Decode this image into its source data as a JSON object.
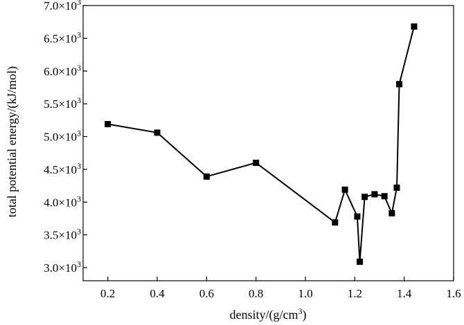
{
  "chart_data": {
    "type": "line",
    "xlabel": "density/(g/cm",
    "xlabel_sup": "3",
    "xlabel_suffix": ")",
    "ylabel": "total potential energy/(kJ/mol)",
    "xlim": [
      0.1,
      1.6
    ],
    "ylim": [
      2.8,
      7.0
    ],
    "x_ticks": [
      0.2,
      0.4,
      0.6,
      0.8,
      1.0,
      1.2,
      1.4,
      1.6
    ],
    "x_tick_labels": [
      "0.2",
      "0.4",
      "0.6",
      "0.8",
      "1.0",
      "1.2",
      "1.4",
      "1.6"
    ],
    "y_ticks": [
      3.0,
      3.5,
      4.0,
      4.5,
      5.0,
      5.5,
      6.0,
      6.5,
      7.0
    ],
    "y_tick_labels": [
      "3.0×10",
      "3.5×10",
      "4.0×10",
      "4.5×10",
      "5.0×10",
      "5.5×10",
      "6.0×10",
      "6.5×10",
      "7.0×10"
    ],
    "y_tick_exponent": "3",
    "grid": false,
    "line_color": "#000000",
    "marker": "square",
    "series": [
      {
        "x": [
          0.2,
          0.4,
          0.6,
          0.8,
          1.12,
          1.16,
          1.21,
          1.22,
          1.24,
          1.28,
          1.32,
          1.35,
          1.37,
          1.38,
          1.44
        ],
        "y": [
          5.19,
          5.06,
          4.39,
          4.6,
          3.69,
          4.19,
          3.78,
          3.09,
          4.08,
          4.12,
          4.09,
          3.83,
          4.22,
          5.8,
          6.68
        ]
      }
    ]
  }
}
